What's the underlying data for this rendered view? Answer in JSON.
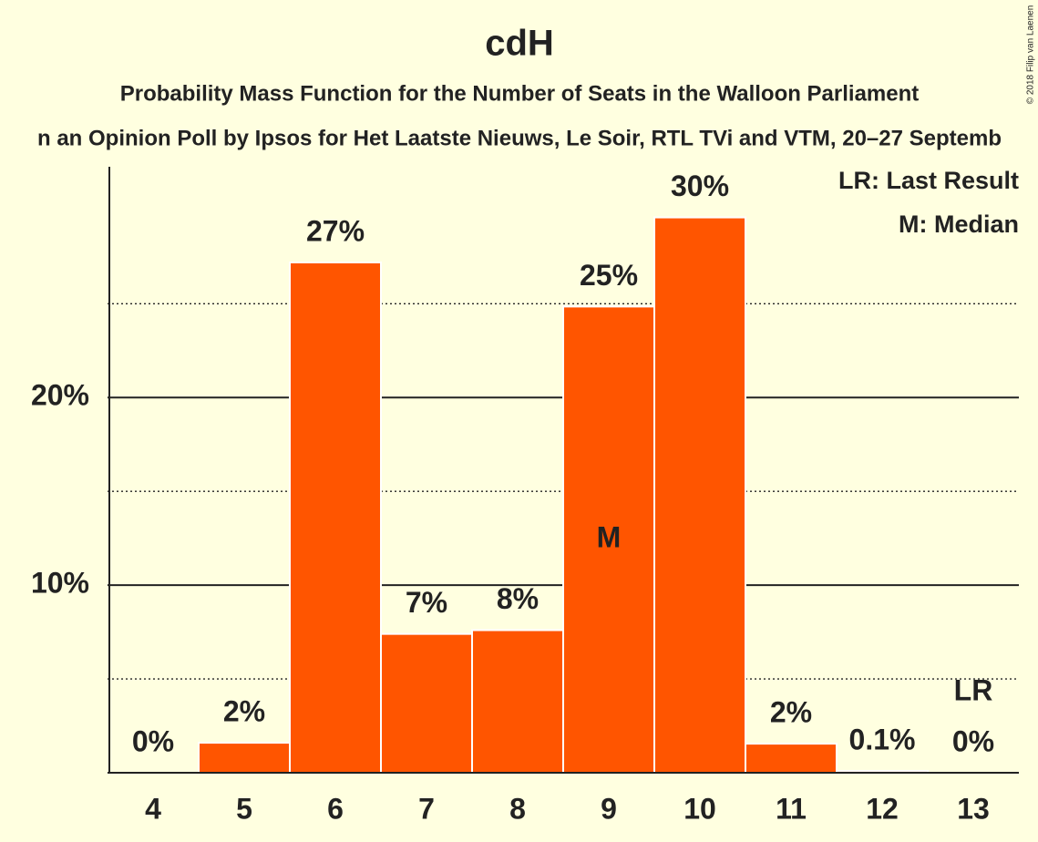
{
  "chart_data": {
    "type": "bar",
    "title": "cdH",
    "subtitle": "Probability Mass Function for the Number of Seats in the Walloon Parliament",
    "subtitle2": "n an Opinion Poll by Ipsos for Het Laatste Nieuws, Le Soir, RTL TVi and VTM, 20–27 Septemb",
    "copyright": "© 2018 Filip van Laenen",
    "categories": [
      "4",
      "5",
      "6",
      "7",
      "8",
      "9",
      "10",
      "11",
      "12",
      "13"
    ],
    "values": [
      0,
      1.6,
      27.2,
      7.4,
      7.6,
      24.85,
      29.6,
      1.55,
      0.1,
      0
    ],
    "value_labels": [
      "0%",
      "2%",
      "27%",
      "7%",
      "8%",
      "25%",
      "30%",
      "2%",
      "0.1%",
      "0%"
    ],
    "color": "#ff5500",
    "ylim": [
      0,
      32.3
    ],
    "yticks": [
      {
        "value": 10,
        "label": "10%"
      },
      {
        "value": 20,
        "label": "20%"
      }
    ],
    "minor_yticks": [
      5,
      15,
      25
    ],
    "grid": true,
    "annotations": [
      {
        "label": "M",
        "category": "9"
      },
      {
        "label": "LR",
        "category": "13"
      }
    ],
    "legend": [
      "LR: Last Result",
      "M: Median"
    ],
    "legend_position": "top-right"
  }
}
